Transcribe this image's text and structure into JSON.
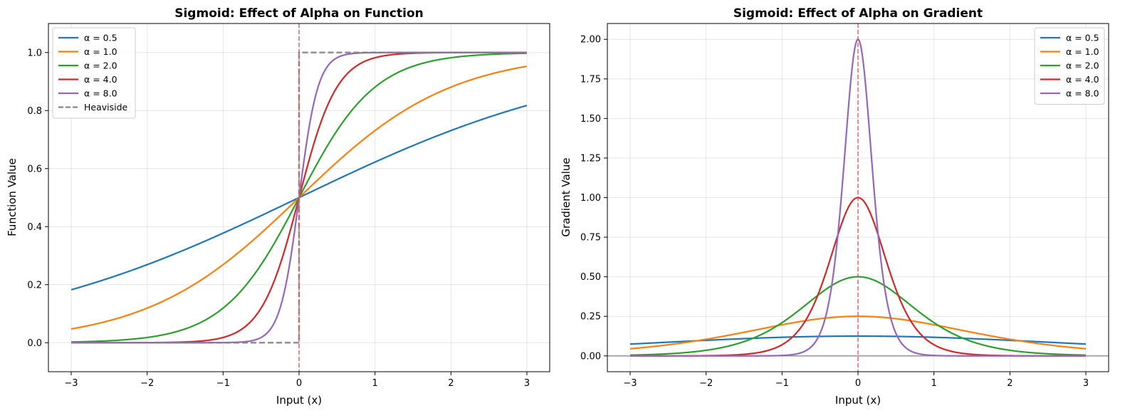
{
  "chart_data": [
    {
      "type": "line",
      "title": "Sigmoid: Effect of Alpha on Function",
      "xlabel": "Input (x)",
      "ylabel": "Function Value",
      "xlim": [
        -3.3,
        3.3
      ],
      "ylim": [
        -0.1,
        1.1
      ],
      "xticks": [
        -3,
        -2,
        -1,
        0,
        1,
        2,
        3
      ],
      "xtick_labels": [
        "−3",
        "−2",
        "−1",
        "0",
        "1",
        "2",
        "3"
      ],
      "yticks": [
        0.0,
        0.2,
        0.4,
        0.6,
        0.8,
        1.0
      ],
      "ytick_labels": [
        "0.0",
        "0.2",
        "0.4",
        "0.6",
        "0.8",
        "1.0"
      ],
      "grid": true,
      "legend_position": "top-left",
      "function": "sigmoid(alpha*x)",
      "x_range": [
        -3,
        3
      ],
      "series": [
        {
          "name": "α = 0.5",
          "alpha": 0.5,
          "color": "#1f77b4"
        },
        {
          "name": "α = 1.0",
          "alpha": 1.0,
          "color": "#ff7f0e"
        },
        {
          "name": "α = 2.0",
          "alpha": 2.0,
          "color": "#2ca02c"
        },
        {
          "name": "α = 4.0",
          "alpha": 4.0,
          "color": "#d62728"
        },
        {
          "name": "α = 8.0",
          "alpha": 8.0,
          "color": "#9467bd"
        },
        {
          "name": "Heaviside",
          "kind": "heaviside",
          "color": "#7f7f7f",
          "dashed": true
        }
      ],
      "vline": {
        "x": 0,
        "color": "#e05050",
        "dashed": true
      }
    },
    {
      "type": "line",
      "title": "Sigmoid: Effect of Alpha on Gradient",
      "xlabel": "Input (x)",
      "ylabel": "Gradient Value",
      "xlim": [
        -3.3,
        3.3
      ],
      "ylim": [
        -0.1,
        2.1
      ],
      "xticks": [
        -3,
        -2,
        -1,
        0,
        1,
        2,
        3
      ],
      "xtick_labels": [
        "−3",
        "−2",
        "−1",
        "0",
        "1",
        "2",
        "3"
      ],
      "yticks": [
        0.0,
        0.25,
        0.5,
        0.75,
        1.0,
        1.25,
        1.5,
        1.75,
        2.0
      ],
      "ytick_labels": [
        "0.00",
        "0.25",
        "0.50",
        "0.75",
        "1.00",
        "1.25",
        "1.50",
        "1.75",
        "2.00"
      ],
      "grid": true,
      "legend_position": "top-right",
      "function": "alpha*sigmoid(alpha*x)*(1-sigmoid(alpha*x))",
      "x_range": [
        -3,
        3
      ],
      "series": [
        {
          "name": "α = 0.5",
          "alpha": 0.5,
          "color": "#1f77b4"
        },
        {
          "name": "α = 1.0",
          "alpha": 1.0,
          "color": "#ff7f0e"
        },
        {
          "name": "α = 2.0",
          "alpha": 2.0,
          "color": "#2ca02c"
        },
        {
          "name": "α = 4.0",
          "alpha": 4.0,
          "color": "#d62728"
        },
        {
          "name": "α = 8.0",
          "alpha": 8.0,
          "color": "#9467bd"
        }
      ],
      "vline": {
        "x": 0,
        "color": "#e05050",
        "dashed": true
      },
      "hline": {
        "y": 0,
        "color": "#808080"
      }
    }
  ]
}
